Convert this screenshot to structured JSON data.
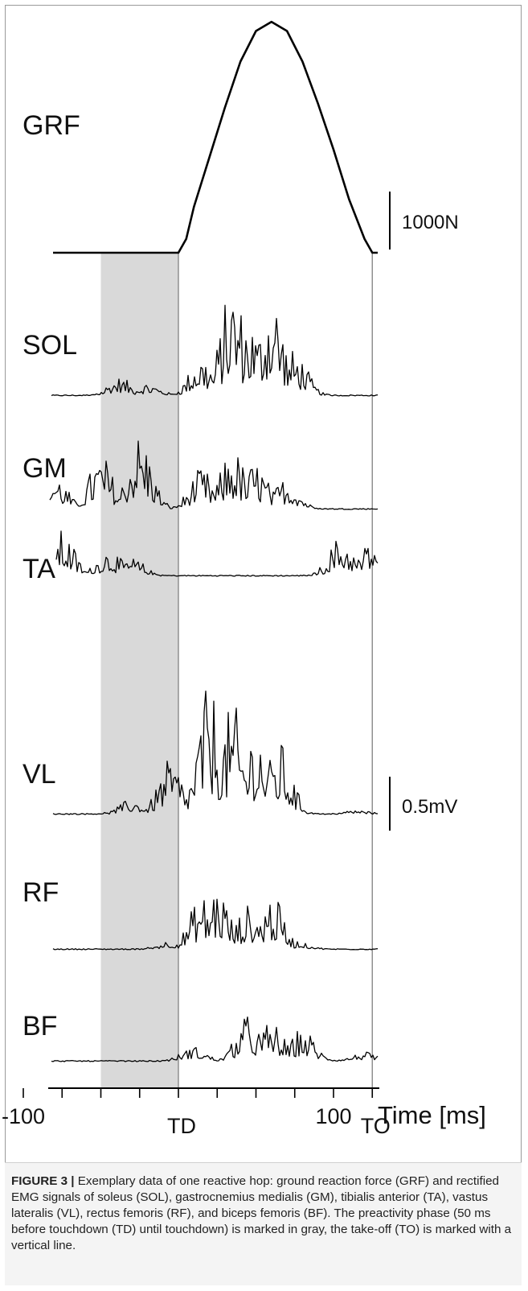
{
  "chart_data": {
    "type": "line",
    "title": "",
    "xlabel": "Time [ms]",
    "ylabel": "",
    "xlim": [
      -145,
      130
    ],
    "x_ticks": [
      -100,
      100
    ],
    "x_ticks_minor": [
      -125,
      -100,
      -75,
      -50,
      -25,
      0,
      25,
      50,
      75,
      100,
      125
    ],
    "events": [
      {
        "label": "TD",
        "x": 0
      },
      {
        "label": "TO",
        "x": 125
      }
    ],
    "preactivity_phase": {
      "x_start": -50,
      "x_end": 0,
      "fill": "#d9d9d9"
    },
    "scale_bars": [
      {
        "label": "1000N",
        "applies_to": "GRF"
      },
      {
        "label": "0.5mV",
        "applies_to": "EMG"
      }
    ],
    "series": [
      {
        "name": "GRF",
        "unit": "N",
        "shape": "force",
        "x": [
          -100,
          0,
          5,
          10,
          20,
          30,
          40,
          50,
          60,
          70,
          80,
          90,
          100,
          110,
          120,
          125,
          160
        ],
        "values": [
          0,
          0,
          180,
          600,
          1250,
          1900,
          2500,
          2900,
          3020,
          2900,
          2500,
          1950,
          1350,
          700,
          180,
          0,
          0
        ]
      },
      {
        "name": "SOL",
        "unit": "mV",
        "shape": "emg",
        "bursts": [
          {
            "x": -38,
            "y": 0.1
          },
          {
            "x": -20,
            "y": 0.07
          },
          {
            "x": 15,
            "y": 0.23
          },
          {
            "x": 35,
            "y": 0.62
          },
          {
            "x": 45,
            "y": 0.45
          },
          {
            "x": 60,
            "y": 0.6
          },
          {
            "x": 75,
            "y": 0.25
          }
        ]
      },
      {
        "name": "GM",
        "unit": "mV",
        "shape": "emg",
        "bursts": [
          {
            "x": -110,
            "y": 0.12
          },
          {
            "x": -80,
            "y": 0.2
          },
          {
            "x": -50,
            "y": 0.3
          },
          {
            "x": -25,
            "y": 0.42
          },
          {
            "x": 15,
            "y": 0.22
          },
          {
            "x": 35,
            "y": 0.34
          },
          {
            "x": 50,
            "y": 0.26
          },
          {
            "x": 70,
            "y": 0.18
          }
        ]
      },
      {
        "name": "TA",
        "unit": "mV",
        "shape": "emg",
        "bursts": [
          {
            "x": -100,
            "y": 0.1
          },
          {
            "x": -75,
            "y": 0.25
          },
          {
            "x": -45,
            "y": 0.15
          },
          {
            "x": -30,
            "y": 0.1
          },
          {
            "x": 105,
            "y": 0.22
          },
          {
            "x": 125,
            "y": 0.2
          },
          {
            "x": 140,
            "y": 0.3
          }
        ]
      },
      {
        "name": "VL",
        "unit": "mV",
        "shape": "emg",
        "bursts": [
          {
            "x": -30,
            "y": 0.08
          },
          {
            "x": -5,
            "y": 0.3
          },
          {
            "x": 20,
            "y": 0.7
          },
          {
            "x": 35,
            "y": 0.6
          },
          {
            "x": 50,
            "y": 0.5
          },
          {
            "x": 65,
            "y": 0.4
          },
          {
            "x": 115,
            "y": 0.02
          }
        ]
      },
      {
        "name": "RF",
        "unit": "mV",
        "shape": "emg",
        "bursts": [
          {
            "x": -5,
            "y": 0.05
          },
          {
            "x": 15,
            "y": 0.3
          },
          {
            "x": 25,
            "y": 0.36
          },
          {
            "x": 45,
            "y": 0.24
          },
          {
            "x": 60,
            "y": 0.3
          },
          {
            "x": 75,
            "y": 0.05
          },
          {
            "x": 150,
            "y": 0.03
          }
        ]
      },
      {
        "name": "BF",
        "unit": "mV",
        "shape": "emg",
        "bursts": [
          {
            "x": -110,
            "y": 0.02
          },
          {
            "x": 10,
            "y": 0.08
          },
          {
            "x": 45,
            "y": 0.25
          },
          {
            "x": 60,
            "y": 0.22
          },
          {
            "x": 80,
            "y": 0.18
          },
          {
            "x": 120,
            "y": 0.05
          }
        ]
      }
    ]
  },
  "caption": {
    "label": "FIGURE 3 |",
    "text": "Exemplary data of one reactive hop: ground reaction force (GRF) and rectified EMG signals of soleus (SOL), gastrocnemius medialis (GM), tibialis anterior (TA), vastus lateralis (VL), rectus femoris (RF), and biceps femoris (BF). The preactivity phase (50 ms before touchdown (TD) until touchdown) is marked in gray, the take-off (TO) is marked with a vertical line."
  }
}
